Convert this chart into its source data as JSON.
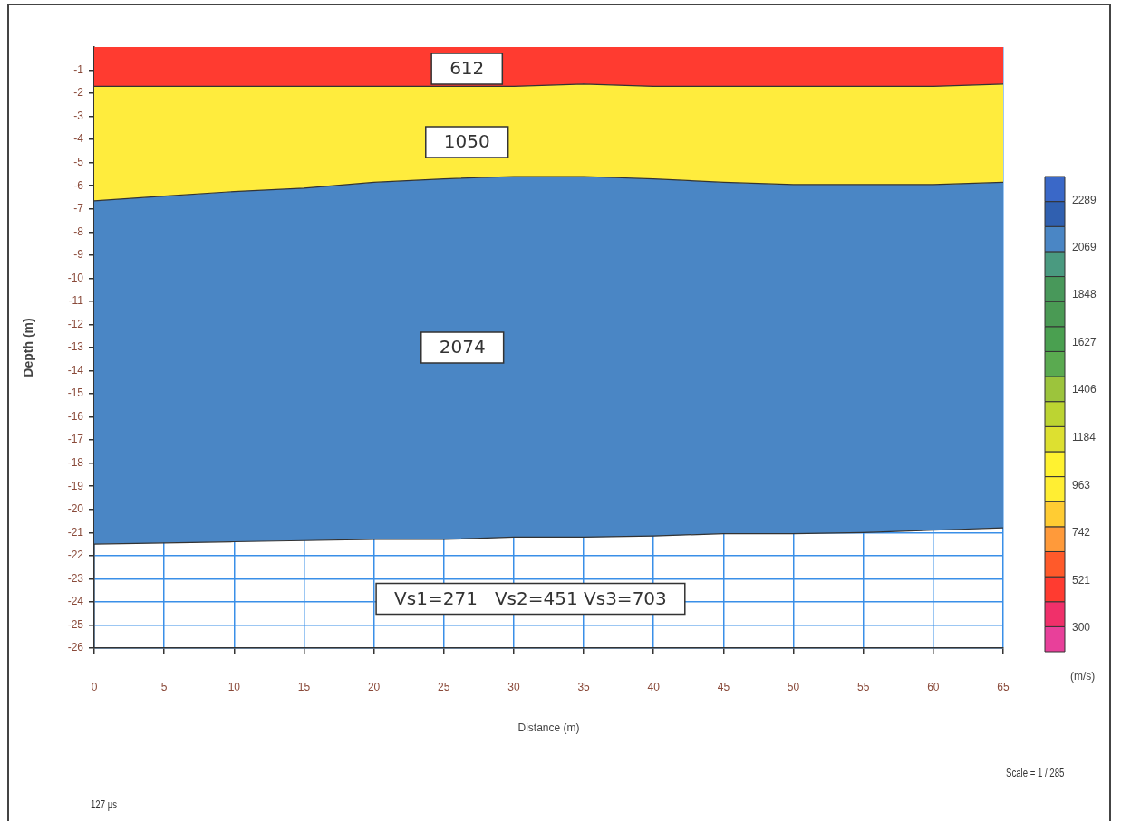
{
  "chart_data": {
    "type": "area",
    "stacked": true,
    "xlabel": "Distance (m)",
    "ylabel": "Depth (m)",
    "clabel": "(m/s)",
    "x": [
      0,
      5,
      10,
      15,
      20,
      25,
      30,
      35,
      40,
      45,
      50,
      55,
      60,
      65
    ],
    "series": [
      {
        "color": "#ff3b30",
        "values": [
          -1.7,
          -1.7,
          -1.7,
          -1.7,
          -1.7,
          -1.7,
          -1.7,
          -1.6,
          -1.7,
          -1.7,
          -1.7,
          -1.7,
          -1.7,
          -1.6
        ]
      },
      {
        "color": "#ffec3d",
        "values": [
          -4.95,
          -4.75,
          -4.55,
          -4.4,
          -4.15,
          -4.0,
          -3.9,
          -4.0,
          -4.0,
          -4.15,
          -4.25,
          -4.25,
          -4.25,
          -4.25
        ]
      },
      {
        "color": "#4a86c5",
        "values": [
          -14.85,
          -15.0,
          -15.15,
          -15.25,
          -15.45,
          -15.6,
          -15.6,
          -15.6,
          -15.45,
          -15.2,
          -15.1,
          -15.05,
          -14.95,
          -14.95
        ]
      }
    ],
    "xlim": [
      0,
      65
    ],
    "xticks": [
      0,
      5,
      10,
      15,
      20,
      25,
      30,
      35,
      40,
      45,
      50,
      55,
      60,
      65
    ],
    "ylim": [
      -26,
      0
    ],
    "yticks": [
      -26,
      -25,
      -24,
      -23,
      -22,
      -21,
      -20,
      -19,
      -18,
      -17,
      -16,
      -15,
      -14,
      -13,
      -12,
      -11,
      -10,
      -9,
      -8,
      -7,
      -6,
      -5,
      -4,
      -3,
      -2,
      -1
    ],
    "clim": [
      190,
      2400
    ],
    "cticks": [
      300,
      521,
      742,
      963,
      1184,
      1406,
      1627,
      1848,
      2069,
      2289
    ],
    "grid": true,
    "legend": false,
    "annotations": [
      "612",
      "1050",
      "2074",
      "Vs1=271   Vs2=451 Vs3=703",
      "Scale = 1 / 285",
      "127 µs"
    ]
  }
}
